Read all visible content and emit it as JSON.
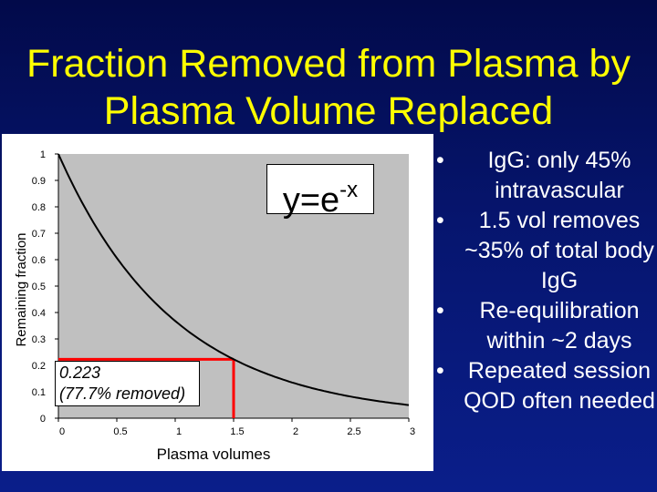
{
  "slide": {
    "title_line1": "Fraction Removed from Plasma by",
    "title_line2": "Plasma Volume Replaced",
    "bullets": [
      "IgG: only 45% intravascular",
      "1.5 vol removes ~35% of total body IgG",
      "Re-equilibration within ~2 days",
      "Repeated session QOD often needed"
    ]
  },
  "colors": {
    "title": "#ffff00",
    "background": "#06156e",
    "curve": "#000000",
    "highlight": "#ff0000",
    "plot_bg": "#c0c0c0"
  },
  "chart_data": {
    "type": "line",
    "xlabel": "Plasma volumes",
    "ylabel": "Remaining fraction",
    "xlim": [
      0,
      3
    ],
    "ylim": [
      0,
      1
    ],
    "x_ticks": [
      "0",
      "0.5",
      "1",
      "1.5",
      "2",
      "2.5",
      "3"
    ],
    "y_ticks": [
      "0",
      "0.1",
      "0.2",
      "0.3",
      "0.4",
      "0.5",
      "0.6",
      "0.7",
      "0.8",
      "0.9",
      "1"
    ],
    "grid": false,
    "series": [
      {
        "formula": "y=e^-x",
        "x": [
          0,
          0.25,
          0.5,
          0.75,
          1,
          1.25,
          1.5,
          1.75,
          2,
          2.25,
          2.5,
          2.75,
          3
        ],
        "y": [
          1,
          0.779,
          0.607,
          0.472,
          0.368,
          0.287,
          0.223,
          0.174,
          0.135,
          0.105,
          0.082,
          0.064,
          0.05
        ]
      }
    ],
    "highlight_point": {
      "x": 1.5,
      "y": 0.223
    },
    "equation_label": {
      "base": "y=e",
      "exponent": "-x"
    },
    "annotation": {
      "line1": "0.223",
      "line2": "(77.7% removed)"
    }
  }
}
